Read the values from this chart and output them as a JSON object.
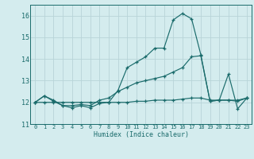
{
  "xlabel": "Humidex (Indice chaleur)",
  "bg_color": "#d4ecee",
  "grid_color": "#b8d4d8",
  "line_color": "#1a6b6b",
  "xlim": [
    -0.5,
    23.5
  ],
  "ylim": [
    11.0,
    16.5
  ],
  "xticks": [
    0,
    1,
    2,
    3,
    4,
    5,
    6,
    7,
    8,
    9,
    10,
    11,
    12,
    13,
    14,
    15,
    16,
    17,
    18,
    19,
    20,
    21,
    22,
    23
  ],
  "yticks": [
    11,
    12,
    13,
    14,
    15,
    16
  ],
  "line1_x": [
    0,
    1,
    2,
    3,
    4,
    5,
    6,
    7,
    8,
    9,
    10,
    11,
    12,
    13,
    14,
    15,
    16,
    17,
    18,
    19,
    20,
    21,
    22,
    23
  ],
  "line1_y": [
    12.0,
    12.3,
    12.1,
    11.85,
    11.75,
    11.85,
    11.75,
    11.95,
    12.0,
    12.55,
    13.6,
    13.85,
    14.1,
    14.5,
    14.5,
    15.8,
    16.1,
    15.85,
    14.2,
    12.05,
    12.1,
    13.3,
    11.7,
    12.2
  ],
  "line2_x": [
    0,
    1,
    2,
    3,
    4,
    5,
    6,
    7,
    8,
    9,
    10,
    11,
    12,
    13,
    14,
    15,
    16,
    17,
    18,
    19,
    20,
    21,
    22,
    23
  ],
  "line2_y": [
    12.0,
    12.3,
    12.05,
    11.85,
    11.85,
    11.9,
    11.85,
    12.1,
    12.2,
    12.5,
    12.7,
    12.9,
    13.0,
    13.1,
    13.2,
    13.4,
    13.6,
    14.1,
    14.15,
    12.05,
    12.1,
    12.1,
    12.05,
    12.2
  ],
  "line3_x": [
    0,
    1,
    2,
    3,
    4,
    5,
    6,
    7,
    8,
    9,
    10,
    11,
    12,
    13,
    14,
    15,
    16,
    17,
    18,
    19,
    20,
    21,
    22,
    23
  ],
  "line3_y": [
    12.0,
    12.0,
    12.0,
    12.0,
    12.0,
    12.0,
    12.0,
    12.0,
    12.0,
    12.0,
    12.0,
    12.05,
    12.05,
    12.1,
    12.1,
    12.1,
    12.15,
    12.2,
    12.2,
    12.1,
    12.1,
    12.1,
    12.1,
    12.2
  ],
  "xlabel_fontsize": 6,
  "tick_fontsize": 5,
  "ytick_fontsize": 6
}
